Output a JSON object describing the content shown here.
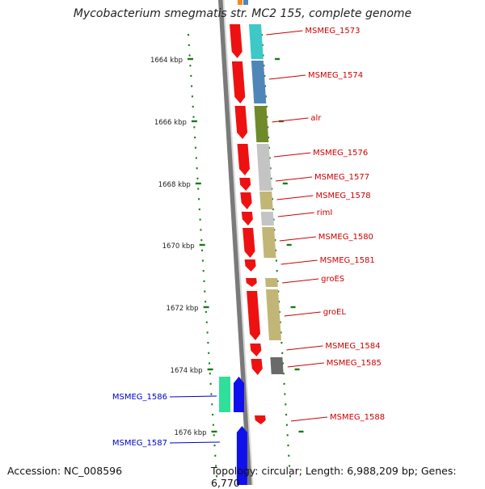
{
  "title": "Mycobacterium smegmatis str. MC2 155, complete genome",
  "footer": {
    "accession": "Accession: NC_008596",
    "summary": "Topology: circular; Length: 6,988,209 bp; Genes: 6,770"
  },
  "colors": {
    "backbone": "#7a7a7a",
    "forward_gene": "#ee1111",
    "reverse_gene": "#1010ee",
    "forward_label": "#cc0000",
    "reverse_label": "#0000cc",
    "ticks": "#1a7a1a",
    "cog_teal": "#3ec8c8",
    "cog_steel": "#4f86b8",
    "cog_olive": "#6e8a2a",
    "cog_gray": "#c4c4c4",
    "cog_khaki": "#c2b677",
    "cog_dark": "#6a6a6a",
    "cog_green": "#2ee09a"
  },
  "ruler": [
    {
      "label": "1664 kbp"
    },
    {
      "label": "1666 kbp"
    },
    {
      "label": "1668 kbp"
    },
    {
      "label": "1670 kbp"
    },
    {
      "label": "1672 kbp"
    },
    {
      "label": "1674 kbp"
    },
    {
      "label": "1676 kbp"
    }
  ],
  "genes_forward": [
    {
      "name": "MSMEG_1573",
      "cog": "cog_teal"
    },
    {
      "name": "MSMEG_1574",
      "cog": "cog_steel"
    },
    {
      "name": "alr",
      "cog": "cog_olive"
    },
    {
      "name": "MSMEG_1576",
      "cog": "cog_gray"
    },
    {
      "name": "MSMEG_1577",
      "cog": "cog_gray"
    },
    {
      "name": "MSMEG_1578",
      "cog": "cog_khaki"
    },
    {
      "name": "rimI",
      "cog": "cog_gray"
    },
    {
      "name": "MSMEG_1580",
      "cog": "cog_khaki"
    },
    {
      "name": "MSMEG_1581",
      "cog": ""
    },
    {
      "name": "groES",
      "cog": "cog_khaki"
    },
    {
      "name": "groEL",
      "cog": "cog_khaki"
    },
    {
      "name": "MSMEG_1584",
      "cog": ""
    },
    {
      "name": "MSMEG_1585",
      "cog": "cog_dark"
    },
    {
      "name": "MSMEG_1588",
      "cog": ""
    }
  ],
  "genes_reverse": [
    {
      "name": "MSMEG_1586",
      "cog": "cog_green"
    },
    {
      "name": "MSMEG_1587",
      "cog": ""
    }
  ]
}
